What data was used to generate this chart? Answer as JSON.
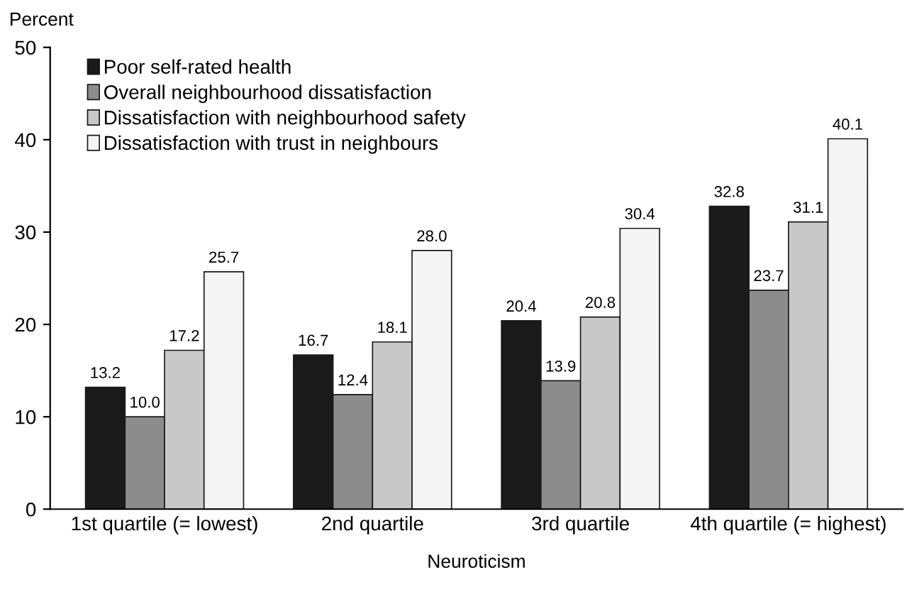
{
  "chart_data": {
    "type": "bar",
    "ylabel": "Percent",
    "xlabel": "Neuroticism",
    "categories": [
      "1st quartile (= lowest)",
      "2nd quartile",
      "3rd quartile",
      "4th quartile (= highest)"
    ],
    "series": [
      {
        "name": "Poor self-rated health",
        "color": "#1a1a1a",
        "values": [
          13.2,
          16.7,
          20.4,
          32.8
        ],
        "value_labels": [
          "13.2",
          "16.7",
          "20.4",
          "32.8"
        ]
      },
      {
        "name": "Overall neighbourhood dissatisfaction",
        "color": "#8c8c8c",
        "values": [
          10.0,
          12.4,
          13.9,
          23.7
        ],
        "value_labels": [
          "10.0",
          "12.4",
          "13.9",
          "23.7"
        ]
      },
      {
        "name": "Dissatisfaction with neighbourhood safety",
        "color": "#c8c8c8",
        "values": [
          17.2,
          18.1,
          20.8,
          31.1
        ],
        "value_labels": [
          "17.2",
          "18.1",
          "20.8",
          "31.1"
        ]
      },
      {
        "name": "Dissatisfaction with trust in neighbours",
        "color": "#f4f4f4",
        "values": [
          25.7,
          28.0,
          30.4,
          40.1
        ],
        "value_labels": [
          "25.7",
          "28.0",
          "30.4",
          "40.1"
        ]
      }
    ],
    "ylim": [
      0,
      50
    ],
    "yticks": [
      0,
      10,
      20,
      30,
      40,
      50
    ],
    "grid": false,
    "legend": "top left"
  }
}
